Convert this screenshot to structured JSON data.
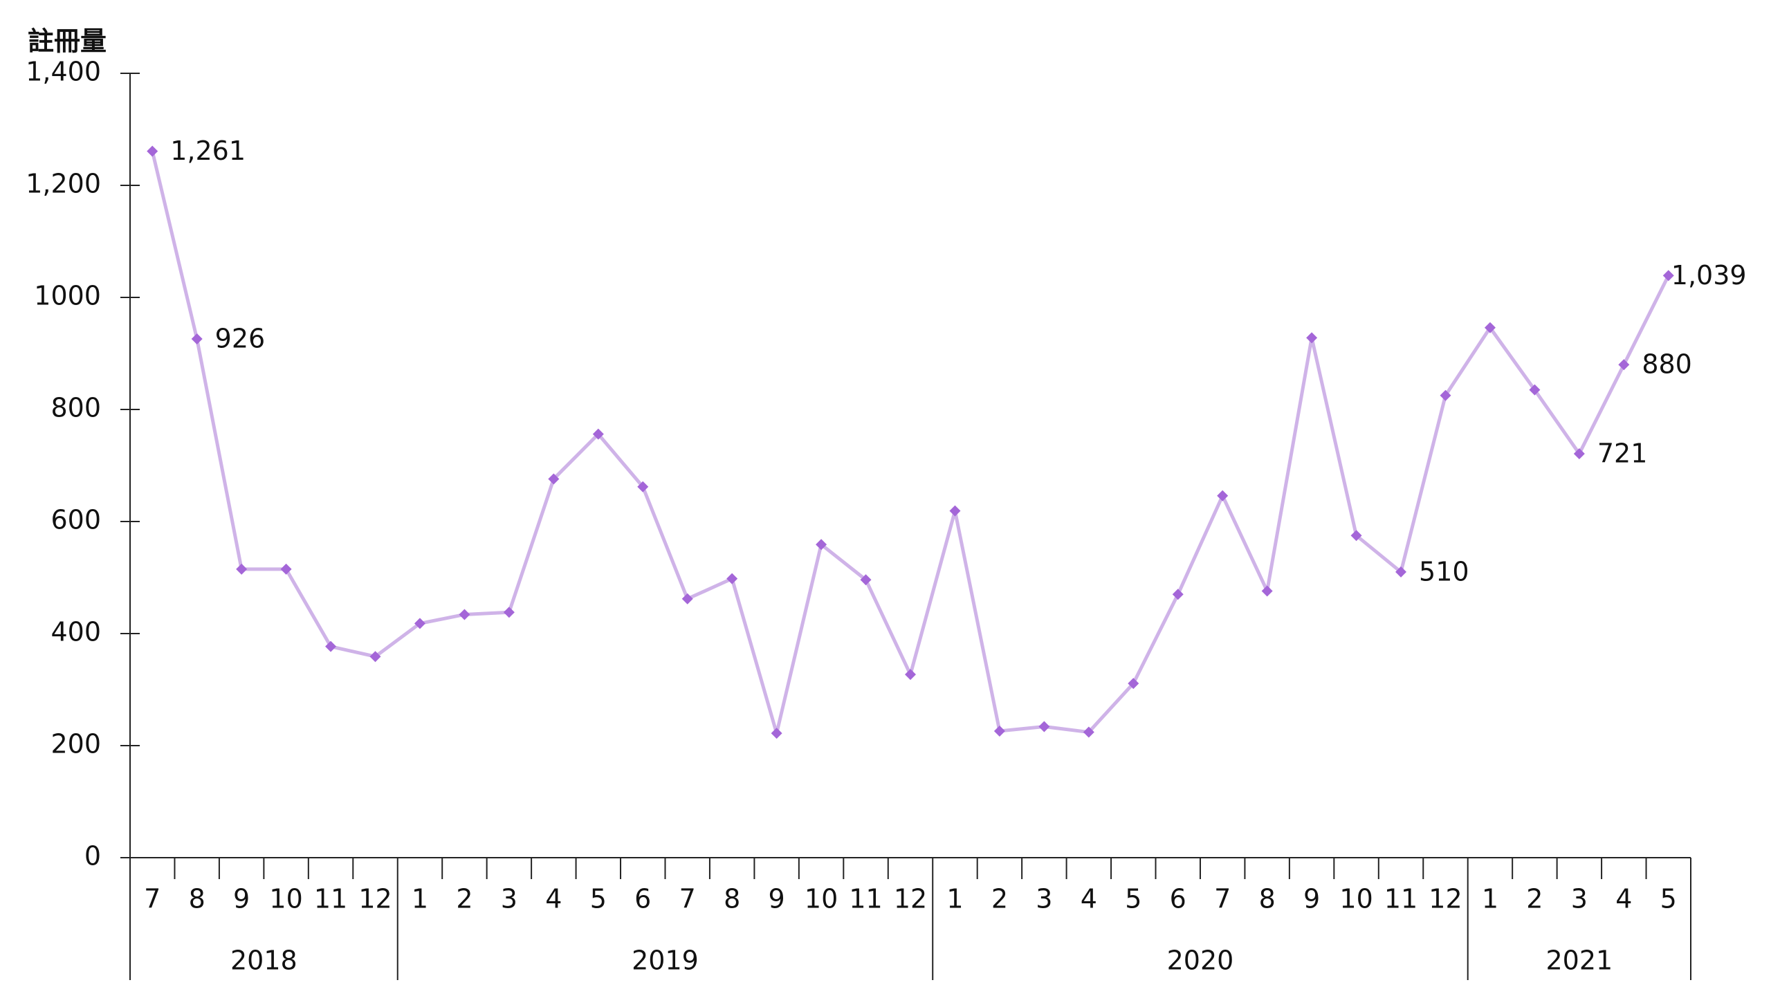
{
  "chart_data": {
    "type": "line",
    "y_label": "註冊量",
    "groups": [
      {
        "name": "2018",
        "months": [
          "7",
          "8",
          "9",
          "10",
          "11",
          "12"
        ]
      },
      {
        "name": "2019",
        "months": [
          "1",
          "2",
          "3",
          "4",
          "5",
          "6",
          "7",
          "8",
          "9",
          "10",
          "11",
          "12"
        ]
      },
      {
        "name": "2020",
        "months": [
          "1",
          "2",
          "3",
          "4",
          "5",
          "6",
          "7",
          "8",
          "9",
          "10",
          "11",
          "12"
        ]
      },
      {
        "name": "2021",
        "months": [
          "1",
          "2",
          "3",
          "4",
          "5"
        ]
      }
    ],
    "series": [
      {
        "color": "#cfb3e8",
        "marker_color": "#a466d8",
        "values": [
          1261,
          926,
          515,
          515,
          377,
          359,
          418,
          434,
          438,
          676,
          756,
          662,
          462,
          498,
          222,
          559,
          496,
          327,
          619,
          226,
          234,
          224,
          311,
          470,
          646,
          476,
          928,
          575,
          510,
          825,
          946,
          835,
          721,
          880,
          1039
        ],
        "value_labels": [
          "1,261",
          "926",
          null,
          null,
          null,
          null,
          null,
          null,
          null,
          null,
          null,
          null,
          null,
          null,
          null,
          null,
          null,
          null,
          null,
          null,
          null,
          null,
          null,
          null,
          null,
          null,
          null,
          null,
          "510",
          null,
          null,
          null,
          "721",
          "880",
          "1,039"
        ]
      }
    ],
    "ylim": [
      0,
      1400
    ],
    "yticks": [
      0,
      200,
      400,
      600,
      800,
      1000,
      {
        "value": 1200,
        "label": "1,200"
      },
      {
        "value": 1400,
        "label": "1,400"
      }
    ],
    "grid": false
  }
}
